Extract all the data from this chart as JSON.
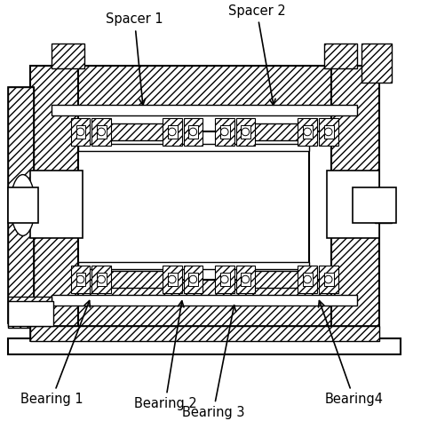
{
  "background_color": "#ffffff",
  "line_color": "#000000",
  "labels": {
    "spacer1": "Spacer 1",
    "spacer2": "Spacer 2",
    "bearing1": "Bearing 1",
    "bearing2": "Bearing 2",
    "bearing3": "Bearing 3",
    "bearing4": "Bearing4"
  },
  "font_size": 10.5,
  "fig_w": 4.74,
  "fig_h": 4.74,
  "dpi": 100
}
